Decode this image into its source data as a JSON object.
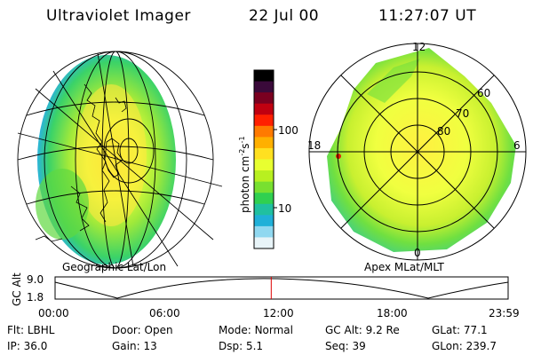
{
  "header": {
    "title": "Ultraviolet Imager",
    "date": "22 Jul 00",
    "time": "11:27:07 UT"
  },
  "left_panel": {
    "label": "Geographic Lat/Lon"
  },
  "right_panel": {
    "label": "Apex MLat/MLT",
    "mlt_labels": {
      "top": "12",
      "left": "18",
      "right": "6",
      "bottom": "0"
    },
    "lat_labels": [
      "60",
      "70",
      "80"
    ]
  },
  "colorbar": {
    "unit_label": "photon cm",
    "unit_exp1": "-2",
    "unit_mid": "s",
    "unit_exp2": "-1",
    "ticks": [
      "100",
      "10"
    ],
    "colors": [
      "#000000",
      "#3a0a3a",
      "#7a0020",
      "#c00010",
      "#ff2000",
      "#ff7a00",
      "#ffb000",
      "#ffe020",
      "#e8ff30",
      "#b8f020",
      "#78e030",
      "#30d050",
      "#20c0a0",
      "#20b0d8",
      "#90d8f0",
      "#e8f4f8"
    ]
  },
  "altitude_plot": {
    "ylabel": "GC Alt",
    "yticks": [
      "9.0",
      "1.8"
    ],
    "xticks": [
      "00:00",
      "06:00",
      "12:00",
      "18:00",
      "23:59"
    ],
    "marker_fraction": 0.4771,
    "marker_color": "#dd0000"
  },
  "info_rows": [
    [
      {
        "label": "Flt:",
        "value": "LBHL"
      },
      {
        "label": "Door:",
        "value": "Open"
      },
      {
        "label": "Mode:",
        "value": "Normal"
      },
      {
        "label": "GC Alt:",
        "value": "9.2 Re"
      },
      {
        "label": "GLat:",
        "value": "77.1"
      }
    ],
    [
      {
        "label": "IP:",
        "value": "36.0"
      },
      {
        "label": "Gain:",
        "value": "13"
      },
      {
        "label": "Dsp:",
        "value": "5.1"
      },
      {
        "label": "Seq:",
        "value": "39"
      },
      {
        "label": "GLon:",
        "value": "239.7"
      }
    ]
  ]
}
